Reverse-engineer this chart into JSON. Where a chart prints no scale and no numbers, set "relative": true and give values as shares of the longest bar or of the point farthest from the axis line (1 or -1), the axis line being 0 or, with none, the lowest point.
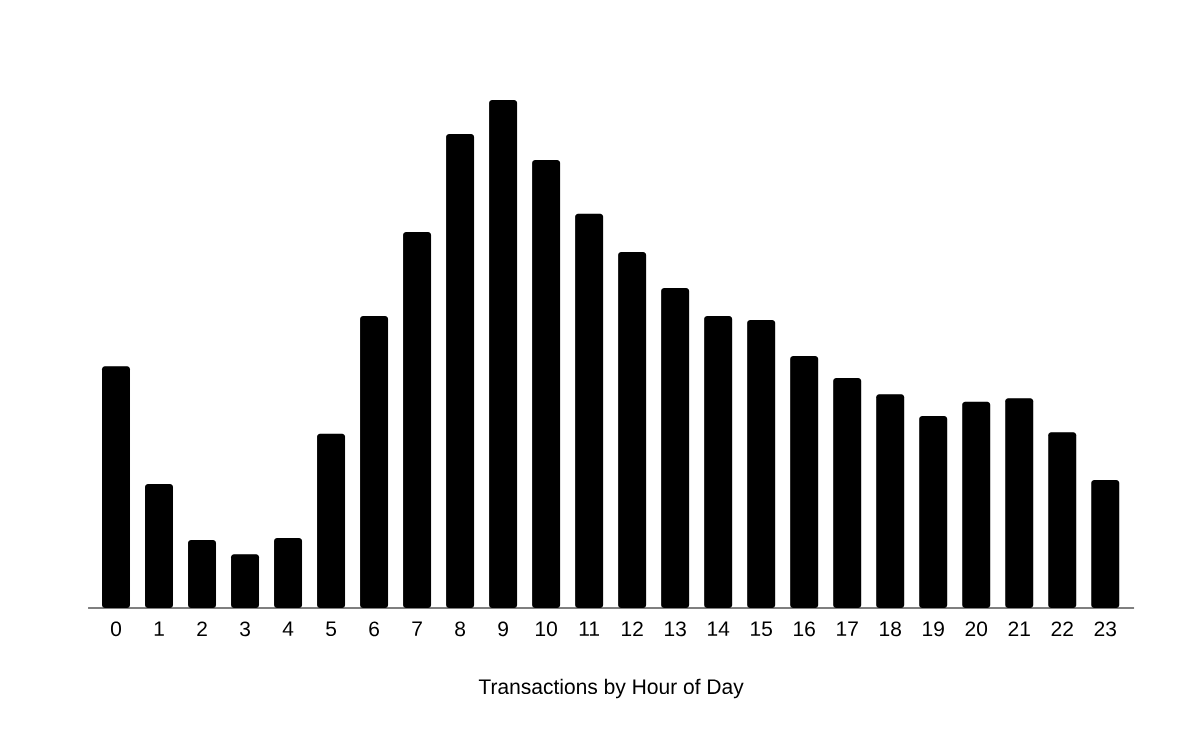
{
  "chart_data": {
    "type": "bar",
    "relative": true,
    "xlabel": "Transactions by Hour of Day",
    "categories": [
      "0",
      "1",
      "2",
      "3",
      "4",
      "5",
      "6",
      "7",
      "8",
      "9",
      "10",
      "11",
      "12",
      "13",
      "14",
      "15",
      "16",
      "17",
      "18",
      "19",
      "20",
      "21",
      "22",
      "23"
    ],
    "values": [
      0.476,
      0.244,
      0.134,
      0.106,
      0.138,
      0.343,
      0.575,
      0.74,
      0.933,
      1,
      0.882,
      0.776,
      0.701,
      0.63,
      0.575,
      0.567,
      0.496,
      0.453,
      0.421,
      0.378,
      0.406,
      0.413,
      0.346,
      0.252
    ],
    "color": "#000000"
  }
}
